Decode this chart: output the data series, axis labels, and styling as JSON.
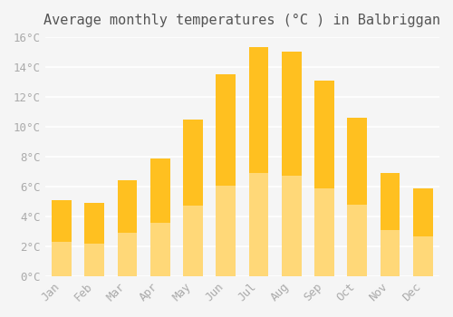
{
  "title": "Average monthly temperatures (°C ) in Balbriggan",
  "months": [
    "Jan",
    "Feb",
    "Mar",
    "Apr",
    "May",
    "Jun",
    "Jul",
    "Aug",
    "Sep",
    "Oct",
    "Nov",
    "Dec"
  ],
  "values": [
    5.1,
    4.9,
    6.4,
    7.9,
    10.5,
    13.5,
    15.3,
    15.0,
    13.1,
    10.6,
    6.9,
    5.9
  ],
  "bar_color_top": "#FFC020",
  "bar_color_bottom": "#FFD878",
  "ylim": [
    0,
    16
  ],
  "yticks": [
    0,
    2,
    4,
    6,
    8,
    10,
    12,
    14,
    16
  ],
  "ytick_labels": [
    "0°C",
    "2°C",
    "4°C",
    "6°C",
    "8°C",
    "10°C",
    "12°C",
    "14°C",
    "16°C"
  ],
  "background_color": "#f5f5f5",
  "grid_color": "#ffffff",
  "title_fontsize": 11,
  "tick_fontsize": 9,
  "font_family": "monospace"
}
